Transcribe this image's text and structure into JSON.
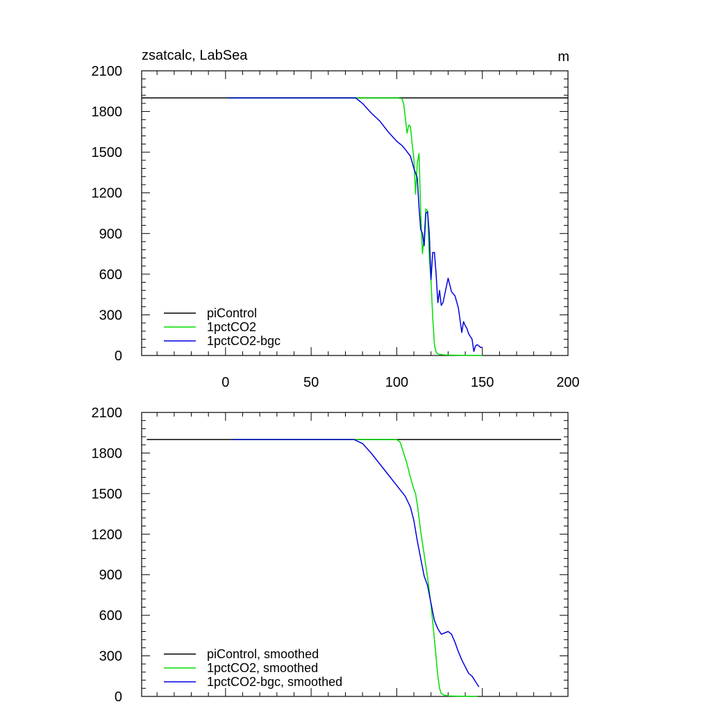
{
  "figure": {
    "title_left": "zsatcalc, LabSea",
    "title_right": "m"
  },
  "chart_data": [
    {
      "type": "line",
      "title": "zsatcalc, LabSea",
      "units": "m",
      "xlabel": "",
      "ylabel": "",
      "xlim": [
        -49,
        200
      ],
      "ylim": [
        0,
        2100
      ],
      "xticks": [
        0,
        50,
        100,
        150,
        200
      ],
      "yticks": [
        0,
        300,
        600,
        900,
        1200,
        1500,
        1800,
        2100
      ],
      "show_x_tick_labels": true,
      "grid": false,
      "legend_position": "bottom-left",
      "series": [
        {
          "name": "piControl",
          "color": "#000000",
          "x": [
            -49,
            200
          ],
          "y": [
            1900,
            1900
          ]
        },
        {
          "name": "1pctCO2",
          "color": "#00dd00",
          "x": [
            1,
            50,
            75,
            100,
            103,
            104,
            105,
            106,
            107,
            108,
            109,
            110,
            111,
            112,
            113,
            114,
            115,
            116,
            117,
            118,
            119,
            120,
            121,
            122,
            123,
            124,
            125,
            127,
            130,
            135,
            140,
            150
          ],
          "y": [
            1900,
            1900,
            1900,
            1900,
            1895,
            1860,
            1760,
            1640,
            1700,
            1690,
            1560,
            1450,
            1190,
            1420,
            1490,
            1060,
            750,
            870,
            1080,
            1070,
            720,
            560,
            280,
            80,
            25,
            12,
            8,
            5,
            3,
            2,
            1,
            0
          ]
        },
        {
          "name": "1pctCO2-bgc",
          "color": "#0000dd",
          "x": [
            1,
            50,
            76,
            80,
            85,
            90,
            95,
            100,
            103,
            105,
            108,
            110,
            112,
            113,
            114,
            115,
            116,
            117,
            118,
            119,
            120,
            121,
            122,
            123,
            124,
            125,
            126,
            127,
            128,
            130,
            132,
            134,
            136,
            138,
            139,
            140,
            141,
            142,
            144,
            145,
            146,
            147,
            148,
            149,
            150
          ],
          "y": [
            1900,
            1900,
            1900,
            1860,
            1790,
            1730,
            1650,
            1580,
            1550,
            1520,
            1470,
            1380,
            1310,
            1090,
            930,
            900,
            810,
            1050,
            1060,
            900,
            560,
            760,
            760,
            600,
            390,
            480,
            370,
            390,
            450,
            570,
            470,
            440,
            350,
            170,
            250,
            220,
            200,
            160,
            120,
            30,
            70,
            80,
            70,
            60,
            60
          ]
        }
      ]
    },
    {
      "type": "line",
      "title": "",
      "xlabel": "",
      "ylabel": "",
      "xlim": [
        -49,
        200
      ],
      "ylim": [
        0,
        2100
      ],
      "xticks": [
        0,
        50,
        100,
        150,
        200
      ],
      "yticks": [
        0,
        300,
        600,
        900,
        1200,
        1500,
        1800,
        2100
      ],
      "show_x_tick_labels": false,
      "grid": false,
      "legend_position": "bottom-left",
      "series": [
        {
          "name": "piControl, smoothed",
          "color": "#000000",
          "x": [
            -46,
            196
          ],
          "y": [
            1900,
            1900
          ]
        },
        {
          "name": "1pctCO2, smoothed",
          "color": "#00dd00",
          "x": [
            4,
            50,
            75,
            100,
            102,
            104,
            106,
            108,
            110,
            111,
            112,
            114,
            116,
            118,
            120,
            122,
            124,
            125,
            126,
            128,
            130,
            135,
            140,
            145,
            147
          ],
          "y": [
            1900,
            1900,
            1900,
            1900,
            1880,
            1800,
            1720,
            1620,
            1530,
            1500,
            1420,
            1220,
            1050,
            880,
            680,
            420,
            150,
            60,
            20,
            8,
            4,
            2,
            1,
            0,
            0
          ]
        },
        {
          "name": "1pctCO2-bgc, smoothed",
          "color": "#0000dd",
          "x": [
            4,
            50,
            75,
            80,
            85,
            90,
            95,
            100,
            105,
            108,
            110,
            112,
            114,
            116,
            118,
            120,
            122,
            124,
            126,
            128,
            130,
            132,
            134,
            136,
            138,
            140,
            142,
            144,
            146,
            148
          ],
          "y": [
            1900,
            1900,
            1900,
            1870,
            1800,
            1720,
            1640,
            1560,
            1480,
            1400,
            1300,
            1150,
            1020,
            890,
            820,
            690,
            560,
            500,
            460,
            470,
            480,
            460,
            400,
            330,
            270,
            220,
            170,
            150,
            110,
            70
          ]
        }
      ]
    }
  ]
}
